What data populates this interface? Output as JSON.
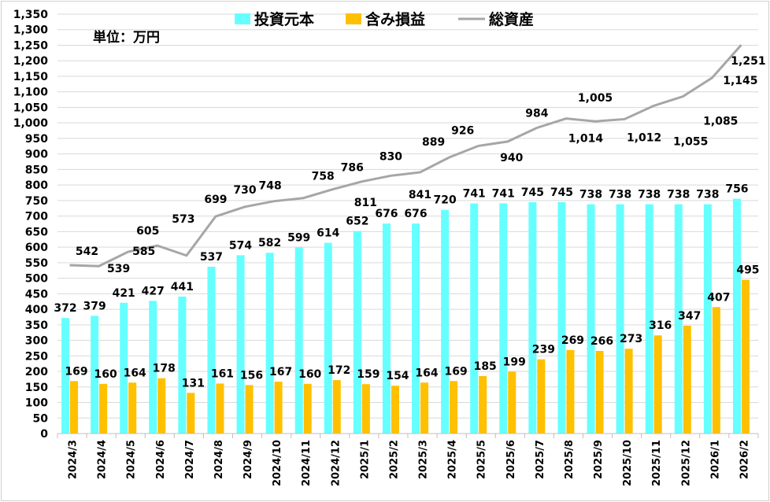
{
  "chart_data": {
    "type": "bar+line",
    "unit_note": "単位：万円",
    "categories": [
      "2024/3",
      "2024/4",
      "2024/5",
      "2024/6",
      "2024/7",
      "2024/8",
      "2024/9",
      "2024/10",
      "2024/11",
      "2024/12",
      "2025/1",
      "2025/2",
      "2025/3",
      "2025/4",
      "2025/5",
      "2025/6",
      "2025/7",
      "2025/8",
      "2025/9",
      "2025/10",
      "2025/11",
      "2025/12",
      "2026/1",
      "2026/2"
    ],
    "series": [
      {
        "name": "投資元本",
        "type": "bar",
        "color": "#66FFFF",
        "values": [
          372,
          379,
          421,
          427,
          441,
          537,
          574,
          582,
          599,
          614,
          652,
          676,
          676,
          720,
          741,
          741,
          745,
          745,
          738,
          738,
          738,
          738,
          738,
          756
        ]
      },
      {
        "name": "含み損益",
        "type": "bar",
        "color": "#FFC000",
        "values": [
          169,
          160,
          164,
          178,
          131,
          161,
          156,
          167,
          160,
          172,
          159,
          154,
          164,
          169,
          185,
          199,
          239,
          269,
          266,
          273,
          316,
          347,
          407,
          495
        ]
      },
      {
        "name": "総資産",
        "type": "line",
        "color": "#A6A6A6",
        "values": [
          542,
          539,
          585,
          605,
          573,
          699,
          730,
          748,
          758,
          786,
          811,
          830,
          841,
          889,
          926,
          940,
          984,
          1014,
          1005,
          1012,
          1055,
          1085,
          1145,
          1251
        ]
      }
    ],
    "ylim": [
      0,
      1350
    ],
    "ytick_step": 50,
    "grid": true,
    "legend": "top-center"
  }
}
